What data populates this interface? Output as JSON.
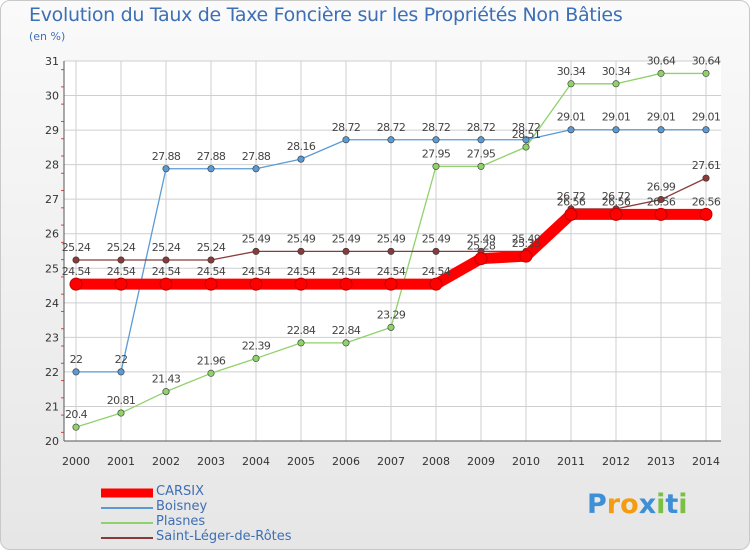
{
  "header": {
    "title": "Evolution du Taux de Taxe Foncière sur les Propriétés Non Bâties",
    "unit": "(en %)"
  },
  "logo": {
    "text": "Proxiti"
  },
  "colors": {
    "title": "#3d6fb5",
    "axis": "#555555",
    "grid": "#cfcfcf"
  },
  "chart_data": {
    "type": "line",
    "title": "Evolution du Taux de Taxe Foncière sur les Propriétés Non Bâties",
    "ylabel": "(en %)",
    "xlabel": "",
    "x": [
      "2000",
      "2001",
      "2002",
      "2003",
      "2004",
      "2005",
      "2006",
      "2007",
      "2008",
      "2009",
      "2010",
      "2011",
      "2012",
      "2013",
      "2014"
    ],
    "ylim": [
      20,
      31
    ],
    "yticks": [
      20,
      21,
      22,
      23,
      24,
      25,
      26,
      27,
      28,
      29,
      30,
      31
    ],
    "grid": true,
    "legend_position": "bottom-left",
    "series": [
      {
        "name": "CARSIX",
        "color": "#ff0000",
        "values": [
          24.54,
          24.54,
          24.54,
          24.54,
          24.54,
          24.54,
          24.54,
          24.54,
          24.54,
          25.28,
          25.35,
          26.56,
          26.56,
          26.56,
          26.56
        ],
        "labels": [
          "24.54",
          "24.54",
          "24.54",
          "24.54",
          "24.54",
          "24.54",
          "24.54",
          "24.54",
          "24.54",
          "25.28",
          "25.35",
          "26.56",
          "26.56",
          "26.56",
          "26.56"
        ]
      },
      {
        "name": "Boisney",
        "color": "#5b9bd5",
        "values": [
          22,
          22,
          27.88,
          27.88,
          27.88,
          28.16,
          28.72,
          28.72,
          28.72,
          28.72,
          28.72,
          29.01,
          29.01,
          29.01,
          29.01
        ],
        "labels": [
          "22",
          "22",
          "27.88",
          "27.88",
          "27.88",
          "28.16",
          "28.72",
          "28.72",
          "28.72",
          "28.72",
          "28.72",
          "29.01",
          "29.01",
          "29.01",
          "29.01"
        ]
      },
      {
        "name": "Plasnes",
        "color": "#8fd16a",
        "values": [
          20.4,
          20.81,
          21.43,
          21.96,
          22.39,
          22.84,
          22.84,
          23.29,
          27.95,
          27.95,
          28.51,
          30.34,
          30.34,
          30.64,
          30.64
        ],
        "labels": [
          "20.4",
          "20.81",
          "21.43",
          "21.96",
          "22.39",
          "22.84",
          "22.84",
          "23.29",
          "27.95",
          "27.95",
          "28.51",
          "30.34",
          "30.34",
          "30.64",
          "30.64"
        ]
      },
      {
        "name": "Saint-Léger-de-Rôtes",
        "color": "#8b3a3a",
        "values": [
          25.24,
          25.24,
          25.24,
          25.24,
          25.49,
          25.49,
          25.49,
          25.49,
          25.49,
          25.49,
          25.49,
          26.72,
          26.72,
          26.99,
          27.61
        ],
        "labels": [
          "25.24",
          "25.24",
          "25.24",
          "25.24",
          "25.49",
          "25.49",
          "25.49",
          "25.49",
          "25.49",
          "25.49",
          "25.49",
          "26.72",
          "26.72",
          "26.99",
          "27.61"
        ]
      }
    ]
  }
}
